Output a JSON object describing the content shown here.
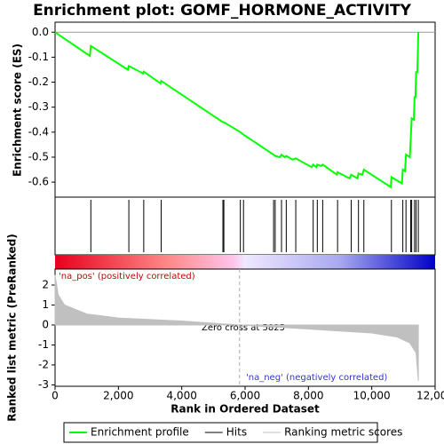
{
  "chart_data": [
    {
      "type": "line",
      "title": "Enrichment plot: GOMF_HORMONE_ACTIVITY",
      "y_label": "Enrichment score (ES)",
      "xlim": [
        0,
        12000
      ],
      "ylim": [
        -0.66,
        0.04
      ],
      "yticks": [
        {
          "value": 0,
          "label": "0.0"
        },
        -0.1,
        -0.2,
        -0.3,
        -0.4,
        -0.5,
        -0.6
      ],
      "x": [
        0,
        1100,
        1130,
        2300,
        2330,
        2780,
        2800,
        3330,
        3350,
        5300,
        5330,
        5850,
        5950,
        6900,
        6950,
        7100,
        7150,
        7250,
        7300,
        7500,
        7600,
        8100,
        8150,
        8250,
        8280,
        8400,
        8450,
        8900,
        8920,
        9300,
        9350,
        9550,
        9580,
        9700,
        9750,
        10600,
        10620,
        10950,
        10980,
        11050,
        11080,
        11200,
        11230,
        11260,
        11330,
        11350,
        11380,
        11400,
        11440,
        11470
      ],
      "series": [
        {
          "name": "Enrichment profile",
          "color": "#00ff00",
          "values": [
            0.0,
            -0.095,
            -0.055,
            -0.15,
            -0.135,
            -0.165,
            -0.158,
            -0.205,
            -0.195,
            -0.36,
            -0.36,
            -0.4,
            -0.41,
            -0.49,
            -0.495,
            -0.5,
            -0.49,
            -0.5,
            -0.495,
            -0.51,
            -0.505,
            -0.54,
            -0.53,
            -0.54,
            -0.53,
            -0.535,
            -0.53,
            -0.57,
            -0.56,
            -0.585,
            -0.57,
            -0.585,
            -0.565,
            -0.57,
            -0.55,
            -0.62,
            -0.58,
            -0.605,
            -0.55,
            -0.555,
            -0.49,
            -0.5,
            -0.43,
            -0.345,
            -0.35,
            -0.26,
            -0.26,
            -0.16,
            -0.16,
            0.0
          ]
        }
      ]
    },
    {
      "type": "rug",
      "xlim": [
        0,
        12000
      ],
      "series": [
        {
          "name": "Hits",
          "color": "#000000",
          "values": [
            1130,
            2330,
            2800,
            3350,
            5300,
            5330,
            5850,
            5950,
            6900,
            6950,
            7150,
            7300,
            7600,
            8150,
            8280,
            8450,
            8920,
            9350,
            9580,
            9750,
            10620,
            10980,
            11080,
            11230,
            11260,
            11350,
            11400,
            11470
          ]
        }
      ]
    },
    {
      "type": "area",
      "x_label": "Rank in Ordered Dataset",
      "y_label": "Ranked list metric (PreRanked)",
      "xlim": [
        0,
        12000
      ],
      "ylim": [
        -3.07,
        2.8
      ],
      "xticks": [
        0,
        {
          "value": 2000,
          "label": "2,000"
        },
        {
          "value": 4000,
          "label": "4,000"
        },
        {
          "value": 6000,
          "label": "6,000"
        },
        {
          "value": 8000,
          "label": "8,000"
        },
        {
          "value": 10000,
          "label": "10,000"
        },
        {
          "value": 12000,
          "label": "12,000"
        }
      ],
      "yticks": [
        2,
        1,
        0,
        -1,
        -2,
        -3
      ],
      "annotations": [
        "'na_pos' (positively correlated)",
        "Zero cross at 5825",
        "'na_neg' (negatively correlated)"
      ],
      "x": [
        0,
        100,
        300,
        1000,
        2000,
        4000,
        5825,
        8000,
        10000,
        10800,
        11200,
        11400,
        11470
      ],
      "series": [
        {
          "name": "Ranking metric scores",
          "color": "#c0c0c0",
          "values": [
            2.5,
            1.5,
            1.0,
            0.55,
            0.35,
            0.2,
            0,
            -0.2,
            -0.4,
            -0.6,
            -0.9,
            -1.4,
            -2.8
          ]
        }
      ]
    }
  ]
}
